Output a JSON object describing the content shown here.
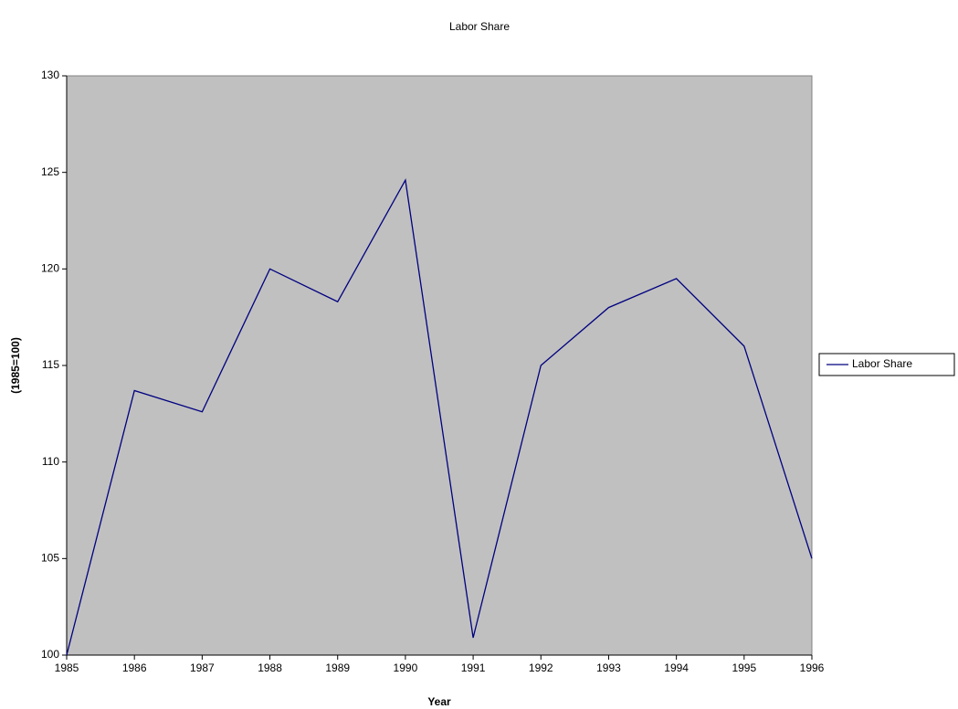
{
  "chart_data": {
    "type": "line",
    "title": "Labor Share",
    "x_label": "Year",
    "y_label": "(1985=100)",
    "x": [
      1985,
      1986,
      1987,
      1988,
      1989,
      1990,
      1991,
      1992,
      1993,
      1994,
      1995,
      1996
    ],
    "series": [
      {
        "name": "Labor Share",
        "color": "#000080",
        "values": [
          100,
          113.7,
          112.6,
          120,
          118.3,
          124.6,
          100.9,
          115,
          118,
          119.5,
          116,
          105
        ]
      }
    ],
    "xlim": [
      1985,
      1996
    ],
    "xticks": [
      1985,
      1986,
      1987,
      1988,
      1989,
      1990,
      1991,
      1992,
      1993,
      1994,
      1995,
      1996
    ],
    "ylim": [
      100,
      130
    ],
    "yticks": [
      100,
      105,
      110,
      115,
      120,
      125,
      130
    ],
    "grid": false,
    "plot_background": "#c0c0c0",
    "legend": "right"
  }
}
